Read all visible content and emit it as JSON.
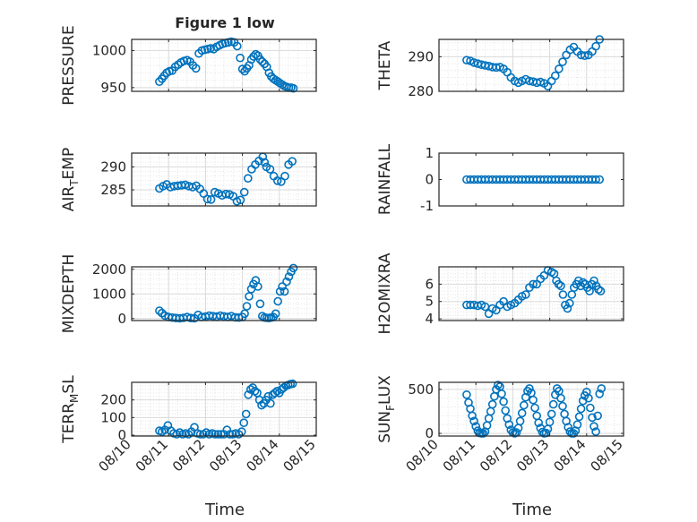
{
  "figure_title": "Figure 1 low",
  "marker_color": "#0072BD",
  "x_axis": {
    "label": "Time",
    "tick_labels": [
      "08/10",
      "08/11",
      "08/12",
      "08/13",
      "08/14",
      "08/15"
    ],
    "range_days": [
      0,
      5
    ]
  },
  "chart_data": [
    {
      "type": "scatter",
      "ylabel": "PRESSURE",
      "ylim": [
        945,
        1015
      ],
      "yticks": [
        950,
        1000
      ],
      "ytick_labels": [
        "950",
        "1000"
      ],
      "grid": true,
      "x_days": [
        0.75,
        0.82,
        0.88,
        0.95,
        1.02,
        1.1,
        1.18,
        1.26,
        1.34,
        1.42,
        1.5,
        1.58,
        1.66,
        1.74,
        1.82,
        1.9,
        1.98,
        2.06,
        2.14,
        2.22,
        2.3,
        2.38,
        2.46,
        2.54,
        2.62,
        2.7,
        2.78,
        2.86,
        2.94,
        3.0,
        3.06,
        3.12,
        3.18,
        3.24,
        3.3,
        3.36,
        3.42,
        3.48,
        3.54,
        3.6,
        3.66,
        3.72,
        3.78,
        3.84,
        3.9,
        3.96,
        4.02,
        4.08,
        4.14,
        4.2,
        4.26,
        4.32,
        4.38
      ],
      "values": [
        958,
        962,
        966,
        970,
        972,
        973,
        978,
        981,
        984,
        986,
        987,
        985,
        980,
        976,
        996,
        1000,
        1001,
        1002,
        1003,
        1002,
        1005,
        1007,
        1009,
        1010,
        1011,
        1012,
        1011,
        1006,
        990,
        975,
        972,
        976,
        980,
        988,
        992,
        995,
        993,
        988,
        985,
        982,
        978,
        970,
        965,
        962,
        960,
        958,
        956,
        954,
        952,
        951,
        950,
        950,
        949
      ]
    },
    {
      "type": "scatter",
      "ylabel": "THETA",
      "ylim": [
        280,
        295
      ],
      "yticks": [
        280,
        290
      ],
      "ytick_labels": [
        "280",
        "290"
      ],
      "grid": true,
      "x_days": [
        0.75,
        0.85,
        0.95,
        1.05,
        1.15,
        1.25,
        1.35,
        1.45,
        1.55,
        1.65,
        1.75,
        1.85,
        1.95,
        2.05,
        2.15,
        2.25,
        2.35,
        2.45,
        2.55,
        2.65,
        2.75,
        2.85,
        2.95,
        3.05,
        3.15,
        3.25,
        3.35,
        3.45,
        3.55,
        3.65,
        3.75,
        3.85,
        3.95,
        4.05,
        4.15,
        4.25,
        4.35
      ],
      "values": [
        289,
        288.8,
        288.3,
        288,
        287.7,
        287.5,
        287.3,
        287,
        286.9,
        287,
        286.5,
        285.5,
        284,
        283,
        282.5,
        283,
        283.5,
        283,
        282.8,
        282.5,
        282.7,
        282.3,
        281.5,
        283,
        284.5,
        286.5,
        288.5,
        290.5,
        292,
        292.8,
        291.5,
        290.5,
        290.3,
        290.5,
        291.5,
        293,
        295
      ]
    },
    {
      "type": "scatter",
      "ylabel": "AIR_TEMP",
      "ylim": [
        281.5,
        293
      ],
      "yticks": [
        285,
        290
      ],
      "ytick_labels": [
        "285",
        "290"
      ],
      "grid": true,
      "x_days": [
        0.75,
        0.85,
        0.95,
        1.05,
        1.15,
        1.25,
        1.35,
        1.45,
        1.55,
        1.65,
        1.75,
        1.85,
        1.95,
        2.05,
        2.15,
        2.25,
        2.35,
        2.45,
        2.55,
        2.65,
        2.75,
        2.85,
        2.95,
        3.05,
        3.15,
        3.25,
        3.35,
        3.45,
        3.55,
        3.6,
        3.65,
        3.75,
        3.85,
        3.95,
        4.05,
        4.15,
        4.25,
        4.35
      ],
      "values": [
        285.3,
        285.8,
        286.2,
        285.6,
        285.8,
        285.9,
        286,
        286.1,
        285.8,
        285.6,
        285.9,
        285.2,
        284.2,
        283,
        282.9,
        284.5,
        284.2,
        283.8,
        284.1,
        284,
        283.6,
        282.5,
        282.8,
        284.5,
        287.5,
        289.5,
        290.5,
        291.3,
        292.2,
        291,
        290,
        289.5,
        288,
        287,
        286.8,
        288,
        290.5,
        291.2
      ]
    },
    {
      "type": "scatter",
      "ylabel": "RAINFALL",
      "ylim": [
        -1,
        1
      ],
      "yticks": [
        -1,
        0,
        1
      ],
      "ytick_labels": [
        "-1",
        "0",
        "1"
      ],
      "grid": false,
      "x_days": [
        0.75,
        0.85,
        0.95,
        1.05,
        1.15,
        1.25,
        1.35,
        1.45,
        1.55,
        1.65,
        1.75,
        1.85,
        1.95,
        2.05,
        2.15,
        2.25,
        2.35,
        2.45,
        2.55,
        2.65,
        2.75,
        2.85,
        2.95,
        3.05,
        3.15,
        3.25,
        3.35,
        3.45,
        3.55,
        3.65,
        3.75,
        3.85,
        3.95,
        4.05,
        4.15,
        4.25,
        4.35
      ],
      "values": [
        0,
        0,
        0,
        0,
        0,
        0,
        0,
        0,
        0,
        0,
        0,
        0,
        0,
        0,
        0,
        0,
        0,
        0,
        0,
        0,
        0,
        0,
        0,
        0,
        0,
        0,
        0,
        0,
        0,
        0,
        0,
        0,
        0,
        0,
        0,
        0,
        0
      ]
    },
    {
      "type": "scatter",
      "ylabel": "MIXDEPTH",
      "ylim": [
        -80,
        2100
      ],
      "yticks": [
        0,
        1000,
        2000
      ],
      "ytick_labels": [
        "0",
        "1000",
        "2000"
      ],
      "grid": true,
      "x_days": [
        0.75,
        0.82,
        0.9,
        1.0,
        1.1,
        1.2,
        1.3,
        1.4,
        1.5,
        1.6,
        1.7,
        1.8,
        1.9,
        2.0,
        2.1,
        2.2,
        2.3,
        2.4,
        2.5,
        2.6,
        2.7,
        2.8,
        2.9,
        3.0,
        3.06,
        3.12,
        3.18,
        3.24,
        3.3,
        3.36,
        3.42,
        3.48,
        3.54,
        3.6,
        3.66,
        3.72,
        3.78,
        3.84,
        3.9,
        3.96,
        4.02,
        4.08,
        4.14,
        4.2,
        4.26,
        4.32,
        4.38
      ],
      "values": [
        320,
        220,
        120,
        60,
        40,
        20,
        10,
        30,
        60,
        20,
        10,
        150,
        60,
        80,
        120,
        100,
        80,
        120,
        90,
        70,
        100,
        50,
        40,
        60,
        200,
        500,
        900,
        1200,
        1400,
        1550,
        1300,
        600,
        100,
        40,
        30,
        20,
        40,
        60,
        200,
        700,
        1100,
        1300,
        1100,
        1500,
        1700,
        1900,
        2050
      ]
    },
    {
      "type": "scatter",
      "ylabel": "H2OMIXRA",
      "ylim": [
        3.9,
        7.0
      ],
      "yticks": [
        4,
        5,
        6
      ],
      "ytick_labels": [
        "4",
        "5",
        "6"
      ],
      "grid": true,
      "x_days": [
        0.75,
        0.85,
        0.95,
        1.05,
        1.15,
        1.25,
        1.35,
        1.45,
        1.55,
        1.65,
        1.75,
        1.85,
        1.95,
        2.05,
        2.15,
        2.25,
        2.35,
        2.45,
        2.55,
        2.65,
        2.75,
        2.85,
        2.95,
        3.05,
        3.12,
        3.18,
        3.24,
        3.3,
        3.36,
        3.42,
        3.48,
        3.54,
        3.6,
        3.66,
        3.72,
        3.78,
        3.84,
        3.9,
        3.96,
        4.02,
        4.08,
        4.14,
        4.2,
        4.26,
        4.32,
        4.38
      ],
      "values": [
        4.8,
        4.8,
        4.8,
        4.75,
        4.8,
        4.7,
        4.3,
        4.6,
        4.5,
        4.8,
        5.0,
        4.7,
        4.8,
        4.9,
        5.1,
        5.3,
        5.4,
        5.8,
        6.0,
        6.0,
        6.3,
        6.5,
        6.8,
        6.7,
        6.6,
        6.2,
        6.0,
        5.9,
        5.4,
        4.8,
        4.6,
        4.9,
        5.4,
        5.8,
        6.0,
        6.2,
        5.9,
        6.1,
        6.0,
        5.8,
        5.6,
        6.0,
        6.2,
        5.9,
        5.7,
        5.6
      ]
    },
    {
      "type": "scatter",
      "ylabel": "TERR_MSL",
      "ylim": [
        -5,
        300
      ],
      "yticks": [
        0,
        100,
        200
      ],
      "ytick_labels": [
        "0",
        "100",
        "200"
      ],
      "grid": true,
      "x_days": [
        0.75,
        0.82,
        0.9,
        0.98,
        1.06,
        1.14,
        1.22,
        1.3,
        1.38,
        1.46,
        1.54,
        1.62,
        1.7,
        1.78,
        1.86,
        1.94,
        2.02,
        2.1,
        2.18,
        2.26,
        2.34,
        2.42,
        2.5,
        2.58,
        2.66,
        2.74,
        2.82,
        2.9,
        2.98,
        3.04,
        3.1,
        3.16,
        3.22,
        3.28,
        3.34,
        3.4,
        3.46,
        3.52,
        3.58,
        3.64,
        3.7,
        3.76,
        3.82,
        3.88,
        3.94,
        4.0,
        4.06,
        4.12,
        4.18,
        4.24,
        4.3,
        4.36
      ],
      "values": [
        25,
        20,
        30,
        55,
        25,
        10,
        5,
        15,
        5,
        10,
        5,
        20,
        45,
        10,
        5,
        5,
        15,
        5,
        10,
        5,
        5,
        5,
        5,
        30,
        5,
        5,
        10,
        5,
        20,
        70,
        120,
        230,
        260,
        270,
        250,
        240,
        200,
        170,
        180,
        200,
        220,
        180,
        230,
        240,
        250,
        240,
        260,
        270,
        280,
        285,
        290,
        292
      ]
    },
    {
      "type": "scatter",
      "ylabel": "SUN_FLUX",
      "ylim": [
        -30,
        580
      ],
      "yticks": [
        0,
        500
      ],
      "ytick_labels": [
        "0",
        "500"
      ],
      "grid": true,
      "x_days": [
        0.75,
        0.8,
        0.85,
        0.9,
        0.95,
        1.0,
        1.05,
        1.1,
        1.15,
        1.2,
        1.25,
        1.3,
        1.35,
        1.4,
        1.45,
        1.5,
        1.55,
        1.6,
        1.65,
        1.7,
        1.75,
        1.8,
        1.85,
        1.9,
        1.95,
        2.0,
        2.05,
        2.1,
        2.15,
        2.2,
        2.25,
        2.3,
        2.35,
        2.4,
        2.45,
        2.5,
        2.55,
        2.6,
        2.65,
        2.7,
        2.75,
        2.8,
        2.85,
        2.9,
        2.95,
        3.0,
        3.05,
        3.1,
        3.15,
        3.2,
        3.25,
        3.3,
        3.35,
        3.4,
        3.45,
        3.5,
        3.55,
        3.6,
        3.65,
        3.7,
        3.75,
        3.8,
        3.85,
        3.9,
        3.95,
        4.0,
        4.05,
        4.1,
        4.15,
        4.2,
        4.25,
        4.3,
        4.35,
        4.4
      ],
      "values": [
        440,
        350,
        280,
        200,
        140,
        80,
        30,
        5,
        0,
        0,
        20,
        90,
        170,
        250,
        330,
        420,
        500,
        550,
        530,
        450,
        360,
        260,
        170,
        100,
        40,
        10,
        0,
        10,
        60,
        140,
        230,
        320,
        410,
        480,
        510,
        460,
        380,
        290,
        200,
        120,
        60,
        15,
        0,
        5,
        50,
        130,
        220,
        330,
        440,
        510,
        480,
        400,
        310,
        220,
        140,
        70,
        20,
        0,
        0,
        30,
        100,
        190,
        280,
        370,
        430,
        470,
        400,
        290,
        180,
        80,
        20,
        200,
        450,
        510
      ]
    }
  ]
}
